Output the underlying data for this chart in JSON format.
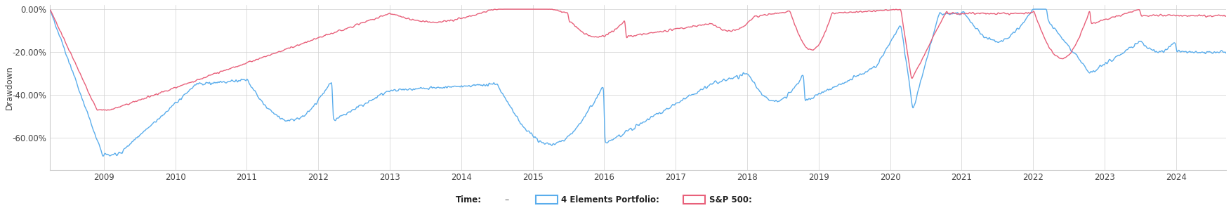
{
  "title": "",
  "ylabel": "Drawdown",
  "xlabel": "",
  "ylim": [
    -0.75,
    0.02
  ],
  "yticks": [
    0.0,
    -0.2,
    -0.4,
    -0.6
  ],
  "ytick_labels": [
    "0.00%",
    "-20.00%",
    "-40.00%",
    "-60.00%"
  ],
  "xstart": 2008.25,
  "xend": 2024.7,
  "xticks": [
    2009,
    2010,
    2011,
    2012,
    2013,
    2014,
    2015,
    2016,
    2017,
    2018,
    2019,
    2020,
    2021,
    2022,
    2023,
    2024
  ],
  "line1_color": "#5aadec",
  "line2_color": "#e8607a",
  "line1_label": "4 Elements Portfolio",
  "line2_label": "S&P 500",
  "legend_time_label": "Time:",
  "background_color": "#ffffff",
  "grid_color": "#d0d0d0",
  "line_width": 1.0
}
